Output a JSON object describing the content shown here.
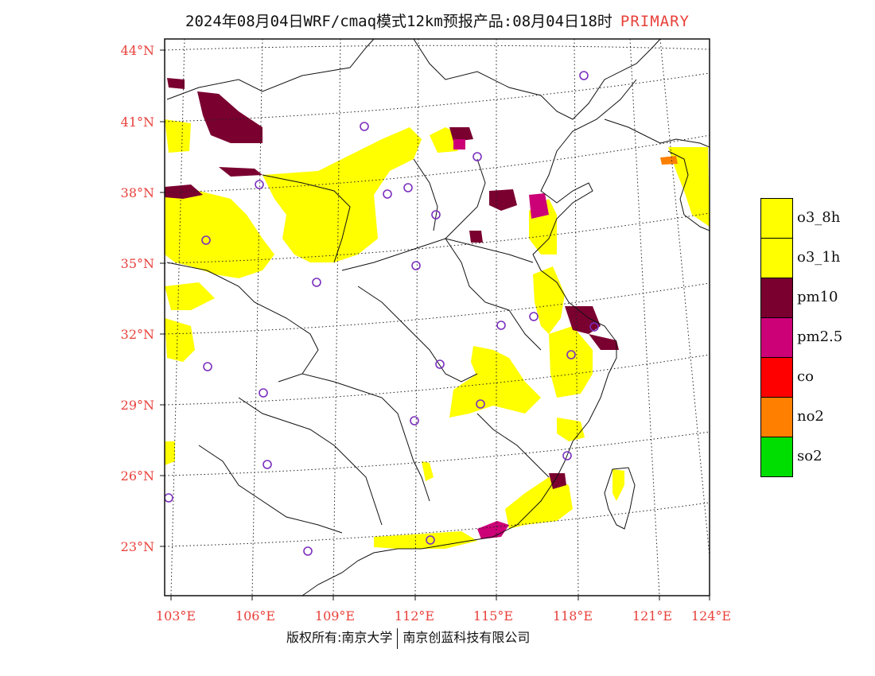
{
  "title": {
    "main": "2024年08月04日WRF/cmaq模式12km预报产品:08月04日18时",
    "tag": "PRIMARY"
  },
  "axes": {
    "lat_labels": [
      "44°N",
      "41°N",
      "38°N",
      "35°N",
      "32°N",
      "29°N",
      "26°N",
      "23°N"
    ],
    "lon_labels": [
      "103°E",
      "106°E",
      "109°E",
      "112°E",
      "115°E",
      "118°E",
      "121°E",
      "124°E"
    ]
  },
  "legend": [
    {
      "label": "o3_8h",
      "color": "#ffff00"
    },
    {
      "label": "o3_1h",
      "color": "#ffff00"
    },
    {
      "label": "pm10",
      "color": "#7a0030"
    },
    {
      "label": "pm2.5",
      "color": "#cc0077"
    },
    {
      "label": "co",
      "color": "#ff0000"
    },
    {
      "label": "no2",
      "color": "#ff8000"
    },
    {
      "label": "so2",
      "color": "#00dd00"
    }
  ],
  "footer": {
    "left": "版权所有:南京大学",
    "right": "南京创蓝科技有限公司"
  },
  "colors": {
    "o3": "#ffff00",
    "pm10": "#7a0030",
    "pm25": "#cc0077",
    "no2": "#ff8000",
    "station": "#7b2fbe",
    "label": "#e8413b"
  }
}
